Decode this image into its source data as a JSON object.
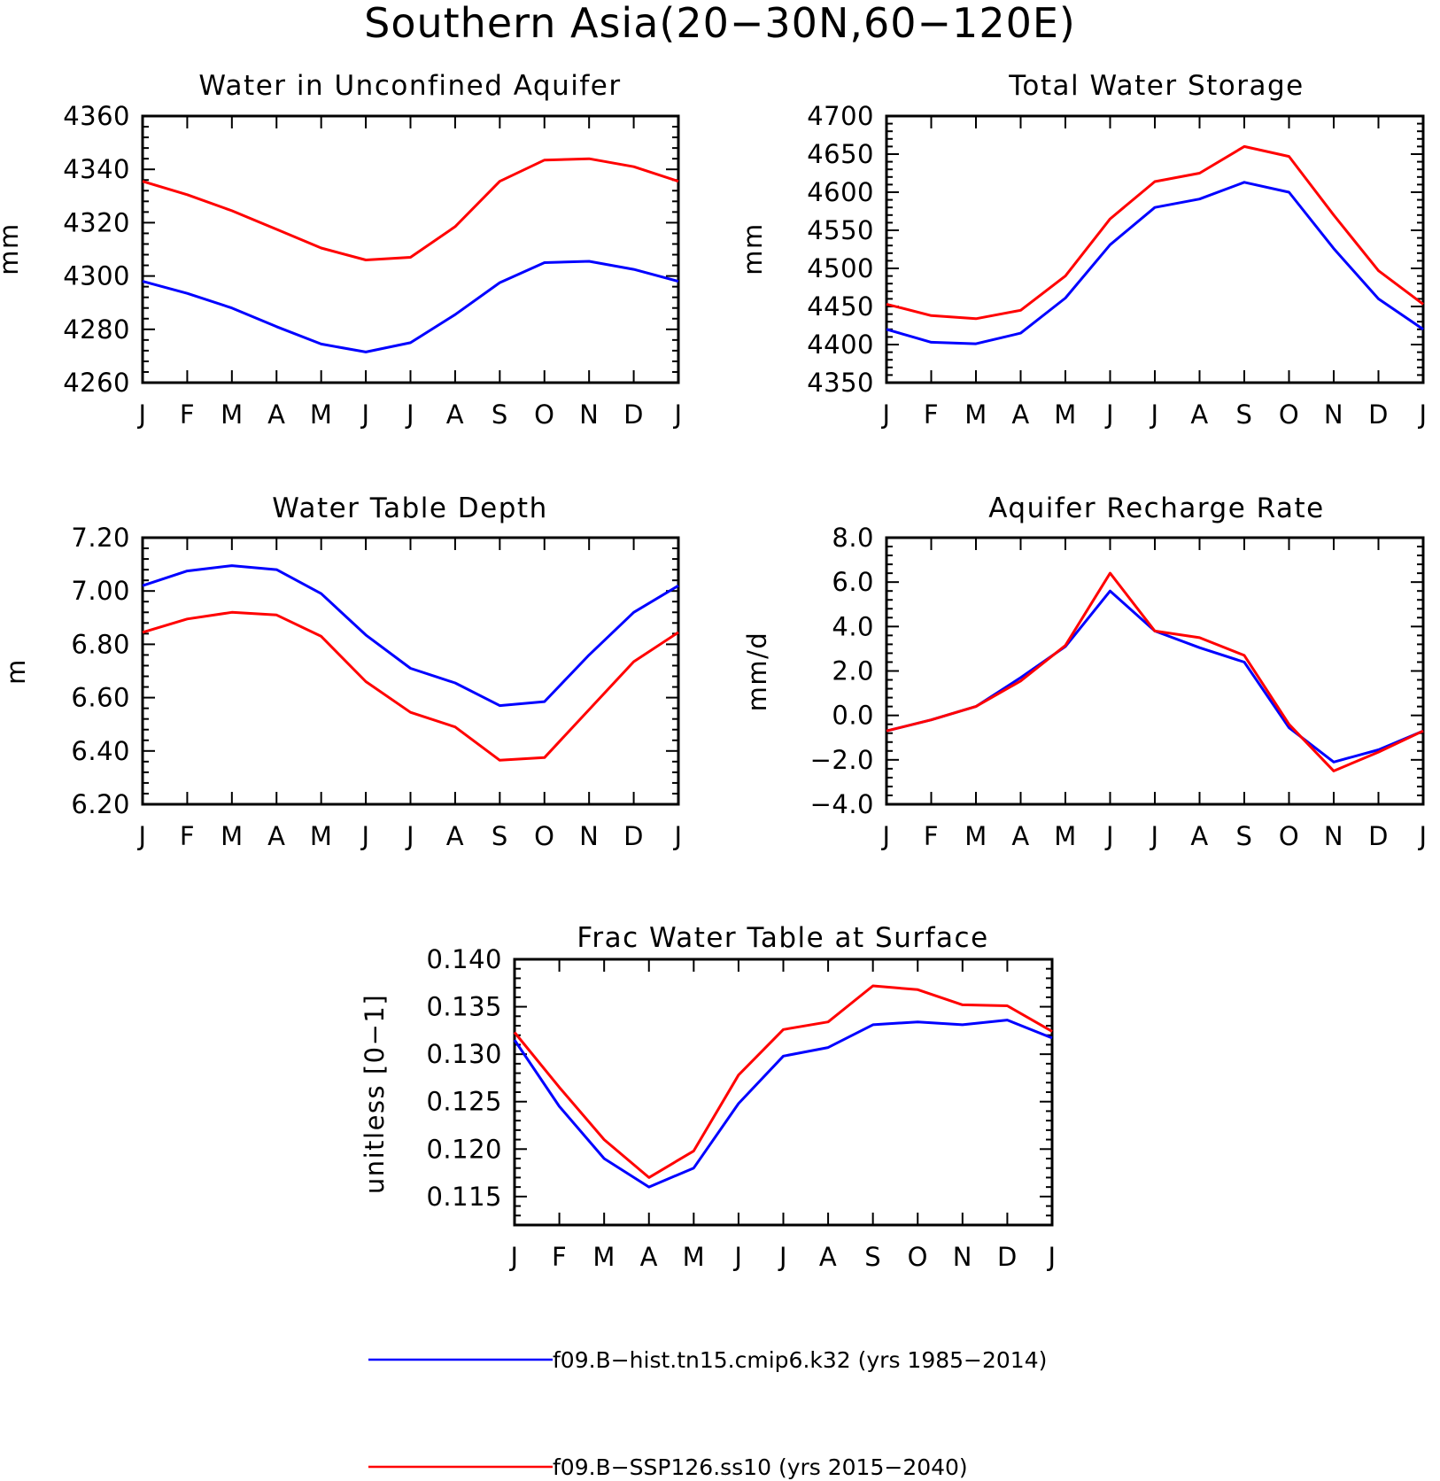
{
  "figure": {
    "title": "Southern Asia(20−30N,60−120E)"
  },
  "colors": {
    "hist": "#0000ff",
    "ssp": "#ff0000",
    "axis": "#000000"
  },
  "legend": [
    {
      "series": "hist",
      "label": "f09.B−hist.tn15.cmip6.k32 (yrs 1985−2014)"
    },
    {
      "series": "ssp",
      "label": "f09.B−SSP126.ss10 (yrs 2015−2040)"
    }
  ],
  "chart_data": [
    {
      "id": "unconfined-aquifer",
      "type": "line",
      "title": "Water in Unconfined Aquifer",
      "ylabel": "mm",
      "xlabel": "",
      "categories": [
        "J",
        "F",
        "M",
        "A",
        "M",
        "J",
        "J",
        "A",
        "S",
        "O",
        "N",
        "D",
        "J"
      ],
      "ylim": [
        4260,
        4360
      ],
      "yticks": [
        4260,
        4280,
        4300,
        4320,
        4340,
        4360
      ],
      "ytick_labels": [
        "4260",
        "4280",
        "4300",
        "4320",
        "4340",
        "4360"
      ],
      "series": [
        {
          "key": "hist",
          "values": [
            4298,
            4293.5,
            4288,
            4281,
            4274.5,
            4271.5,
            4275,
            4285.5,
            4297.5,
            4305,
            4305.5,
            4302.5,
            4298
          ]
        },
        {
          "key": "ssp",
          "values": [
            4335.5,
            4330.5,
            4324.5,
            4317.5,
            4310.5,
            4306,
            4307,
            4318.5,
            4335.5,
            4343.5,
            4344,
            4341,
            4335.5
          ]
        }
      ]
    },
    {
      "id": "total-water-storage",
      "type": "line",
      "title": "Total Water Storage",
      "ylabel": "mm",
      "xlabel": "",
      "categories": [
        "J",
        "F",
        "M",
        "A",
        "M",
        "J",
        "J",
        "A",
        "S",
        "O",
        "N",
        "D",
        "J"
      ],
      "ylim": [
        4350,
        4700
      ],
      "yticks": [
        4350,
        4400,
        4450,
        4500,
        4550,
        4600,
        4650,
        4700
      ],
      "ytick_labels": [
        "4350",
        "4400",
        "4450",
        "4500",
        "4550",
        "4600",
        "4650",
        "4700"
      ],
      "series": [
        {
          "key": "hist",
          "values": [
            4420,
            4403,
            4401,
            4415,
            4461,
            4531,
            4580,
            4591,
            4613,
            4600,
            4526,
            4460,
            4420
          ]
        },
        {
          "key": "ssp",
          "values": [
            4453,
            4438,
            4434,
            4445,
            4490,
            4565,
            4614,
            4625,
            4660,
            4647,
            4570,
            4497,
            4453
          ]
        }
      ]
    },
    {
      "id": "water-table-depth",
      "type": "line",
      "title": "Water Table Depth",
      "ylabel": "m",
      "xlabel": "",
      "categories": [
        "J",
        "F",
        "M",
        "A",
        "M",
        "J",
        "J",
        "A",
        "S",
        "O",
        "N",
        "D",
        "J"
      ],
      "ylim": [
        6.2,
        7.2
      ],
      "yticks": [
        6.2,
        6.4,
        6.6,
        6.8,
        7.0,
        7.2
      ],
      "ytick_labels": [
        "6.20",
        "6.40",
        "6.60",
        "6.80",
        "7.00",
        "7.20"
      ],
      "series": [
        {
          "key": "hist",
          "values": [
            7.02,
            7.075,
            7.095,
            7.08,
            6.99,
            6.835,
            6.71,
            6.655,
            6.57,
            6.585,
            6.76,
            6.92,
            7.02
          ]
        },
        {
          "key": "ssp",
          "values": [
            6.845,
            6.895,
            6.92,
            6.91,
            6.83,
            6.66,
            6.545,
            6.49,
            6.365,
            6.375,
            6.555,
            6.735,
            6.845
          ]
        }
      ]
    },
    {
      "id": "aquifer-recharge-rate",
      "type": "line",
      "title": "Aquifer Recharge Rate",
      "ylabel": "mm/d",
      "xlabel": "",
      "categories": [
        "J",
        "F",
        "M",
        "A",
        "M",
        "J",
        "J",
        "A",
        "S",
        "O",
        "N",
        "D",
        "J"
      ],
      "ylim": [
        -4.0,
        8.0
      ],
      "yticks": [
        -4.0,
        -2.0,
        0.0,
        2.0,
        4.0,
        6.0,
        8.0
      ],
      "ytick_labels": [
        "−4.0",
        "−2.0",
        "0.0",
        "2.0",
        "4.0",
        "6.0",
        "8.0"
      ],
      "series": [
        {
          "key": "hist",
          "values": [
            -0.7,
            -0.2,
            0.4,
            1.7,
            3.1,
            5.6,
            3.8,
            3.05,
            2.4,
            -0.55,
            -2.1,
            -1.55,
            -0.7
          ]
        },
        {
          "key": "ssp",
          "values": [
            -0.7,
            -0.2,
            0.4,
            1.55,
            3.15,
            6.4,
            3.8,
            3.5,
            2.7,
            -0.4,
            -2.5,
            -1.65,
            -0.7
          ]
        }
      ]
    },
    {
      "id": "frac-water-table",
      "type": "line",
      "title": "Frac Water Table at Surface",
      "ylabel": "unitless [0−1]",
      "xlabel": "",
      "categories": [
        "J",
        "F",
        "M",
        "A",
        "M",
        "J",
        "J",
        "A",
        "S",
        "O",
        "N",
        "D",
        "J"
      ],
      "ylim": [
        0.112,
        0.14
      ],
      "yticks": [
        0.115,
        0.12,
        0.125,
        0.13,
        0.135,
        0.14
      ],
      "ytick_labels": [
        "0.115",
        "0.120",
        "0.125",
        "0.130",
        "0.135",
        "0.140"
      ],
      "series": [
        {
          "key": "hist",
          "values": [
            0.1315,
            0.1245,
            0.119,
            0.116,
            0.118,
            0.1248,
            0.1298,
            0.1307,
            0.1331,
            0.1334,
            0.1331,
            0.1336,
            0.1317
          ]
        },
        {
          "key": "ssp",
          "values": [
            0.1323,
            0.1265,
            0.121,
            0.117,
            0.1198,
            0.1278,
            0.1326,
            0.1334,
            0.1372,
            0.1368,
            0.1352,
            0.1351,
            0.1324
          ]
        }
      ]
    }
  ]
}
